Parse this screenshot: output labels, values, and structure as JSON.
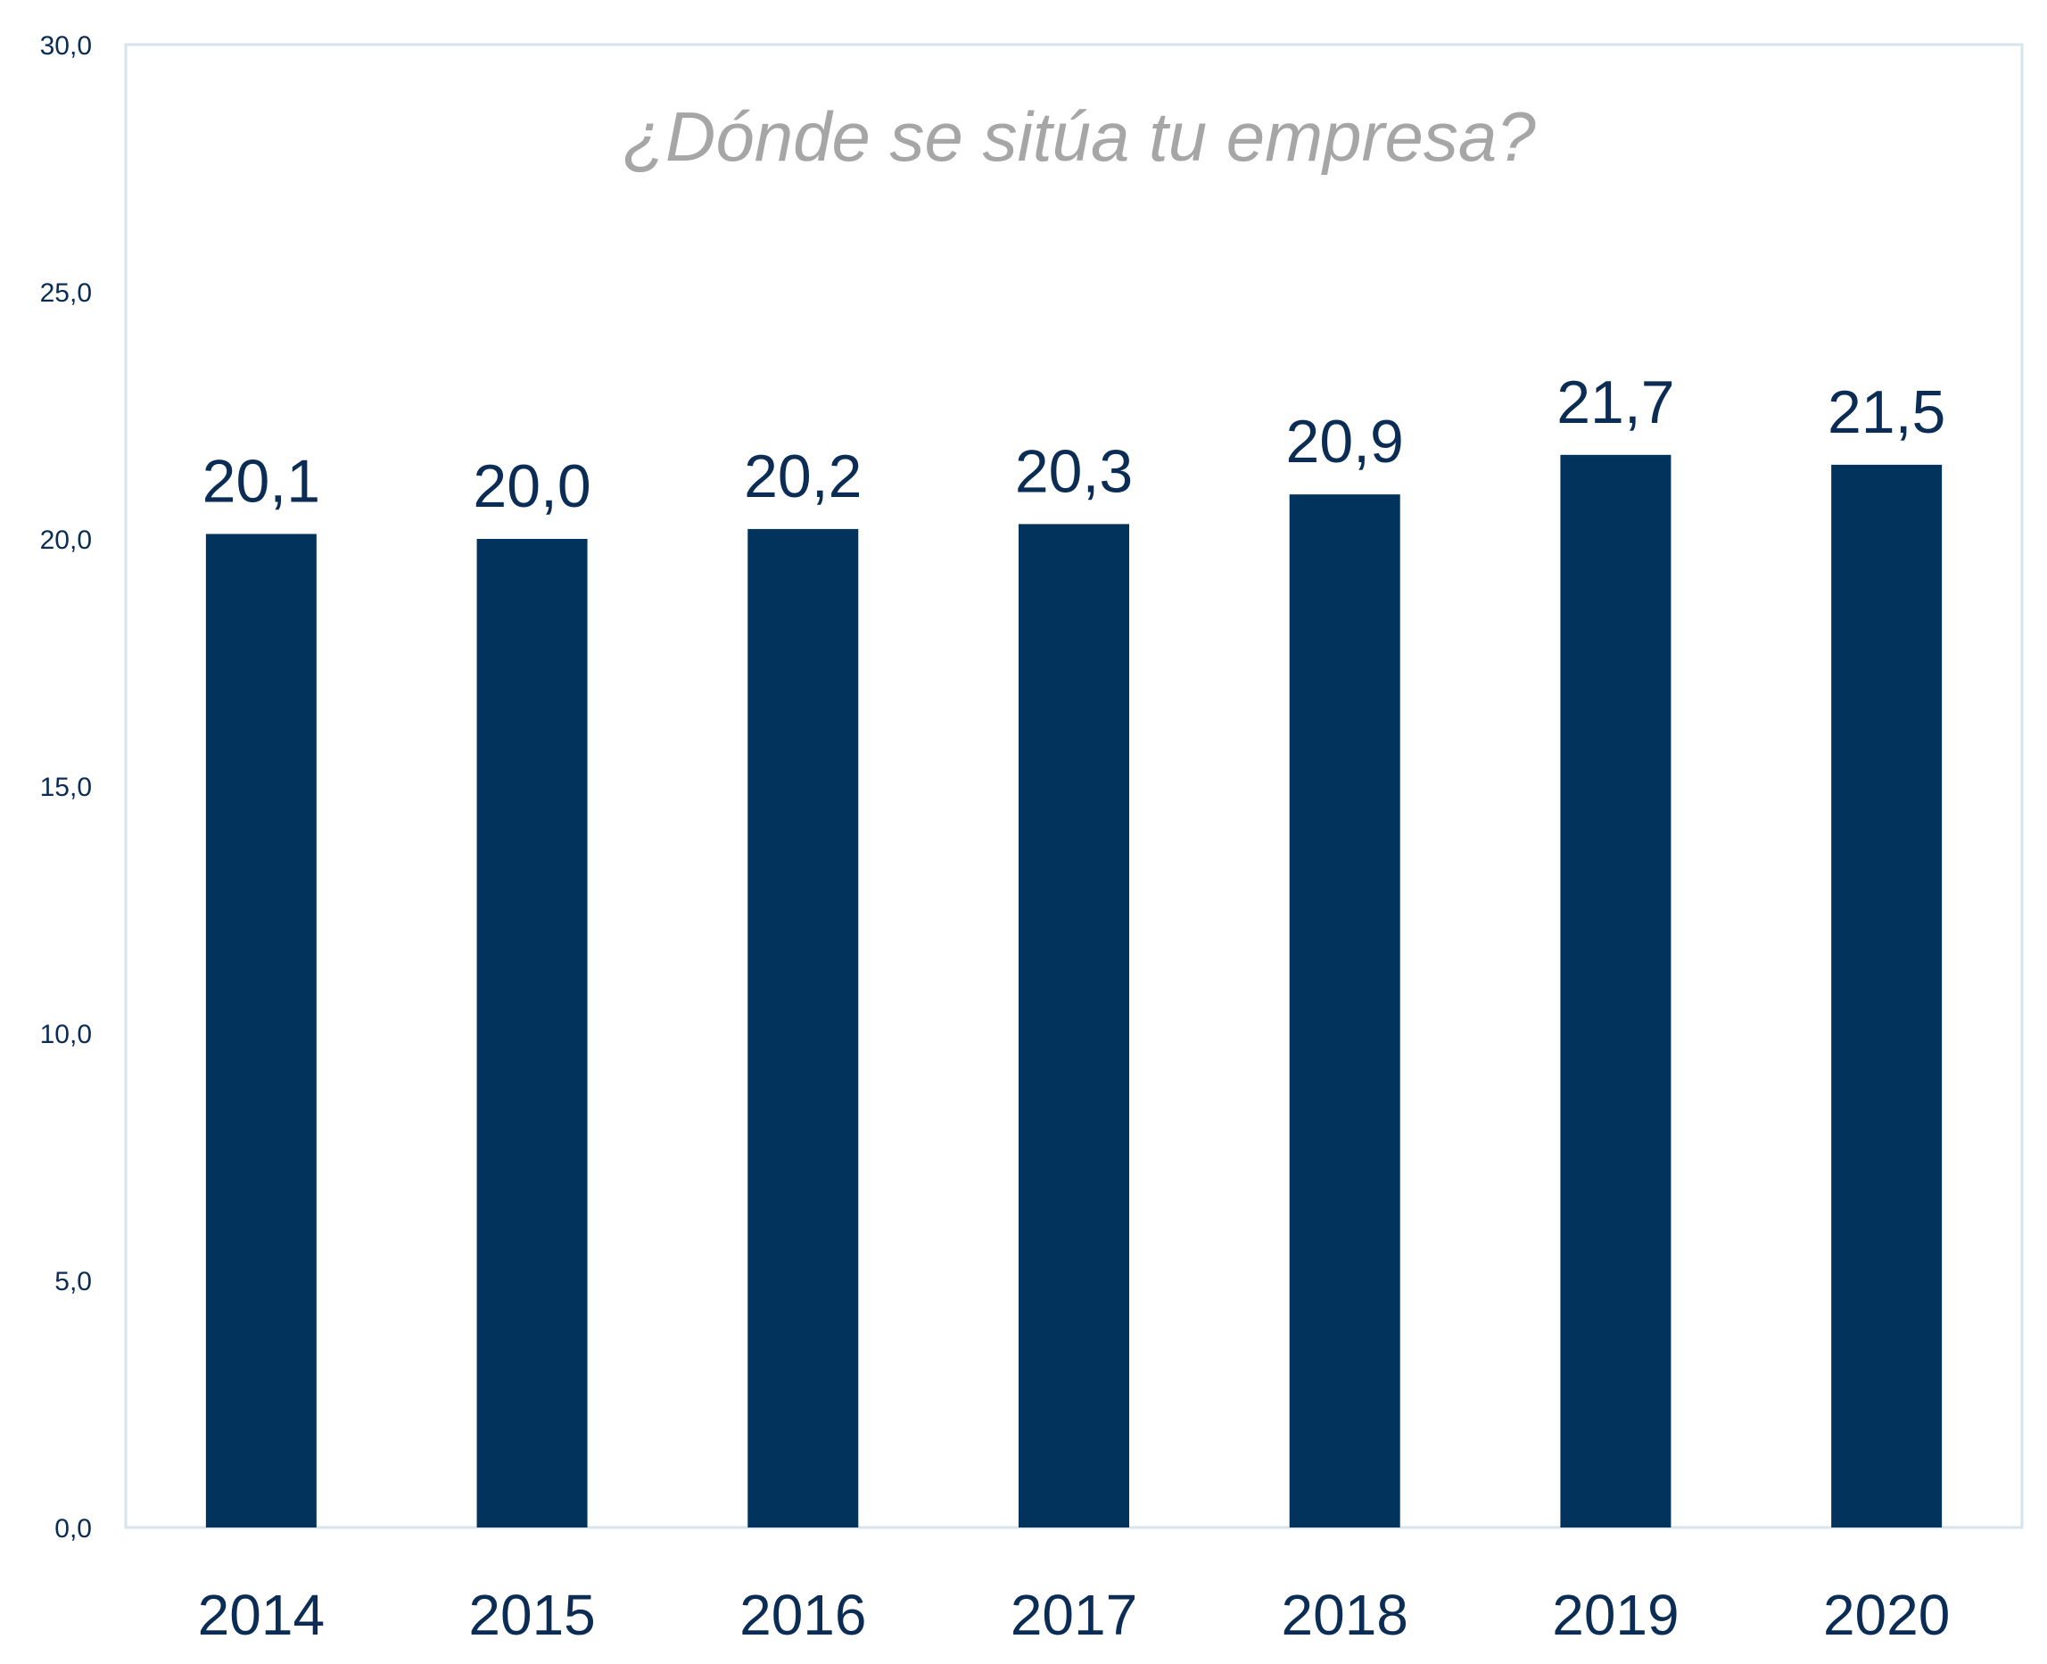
{
  "chart_data": {
    "type": "bar",
    "title": "¿Dónde se sitúa tu empresa?",
    "categories": [
      "2014",
      "2015",
      "2016",
      "2017",
      "2018",
      "2019",
      "2020"
    ],
    "values": [
      20.1,
      20.0,
      20.2,
      20.3,
      20.9,
      21.7,
      21.5
    ],
    "data_labels": [
      "20,1",
      "20,0",
      "20,2",
      "20,3",
      "20,9",
      "21,7",
      "21,5"
    ],
    "ylim": [
      0,
      30
    ],
    "yticks": [
      0,
      5,
      10,
      15,
      20,
      25,
      30
    ],
    "ytick_labels": [
      "0,0",
      "5,0",
      "10,0",
      "15,0",
      "20,0",
      "25,0",
      "30,0"
    ],
    "xlabel": "",
    "ylabel": "",
    "grid": false,
    "legend": "none",
    "colors": {
      "bar": "#02335c",
      "text": "#0b2d55",
      "title": "#a6a6a6",
      "frame": "#d6e4ee"
    }
  }
}
